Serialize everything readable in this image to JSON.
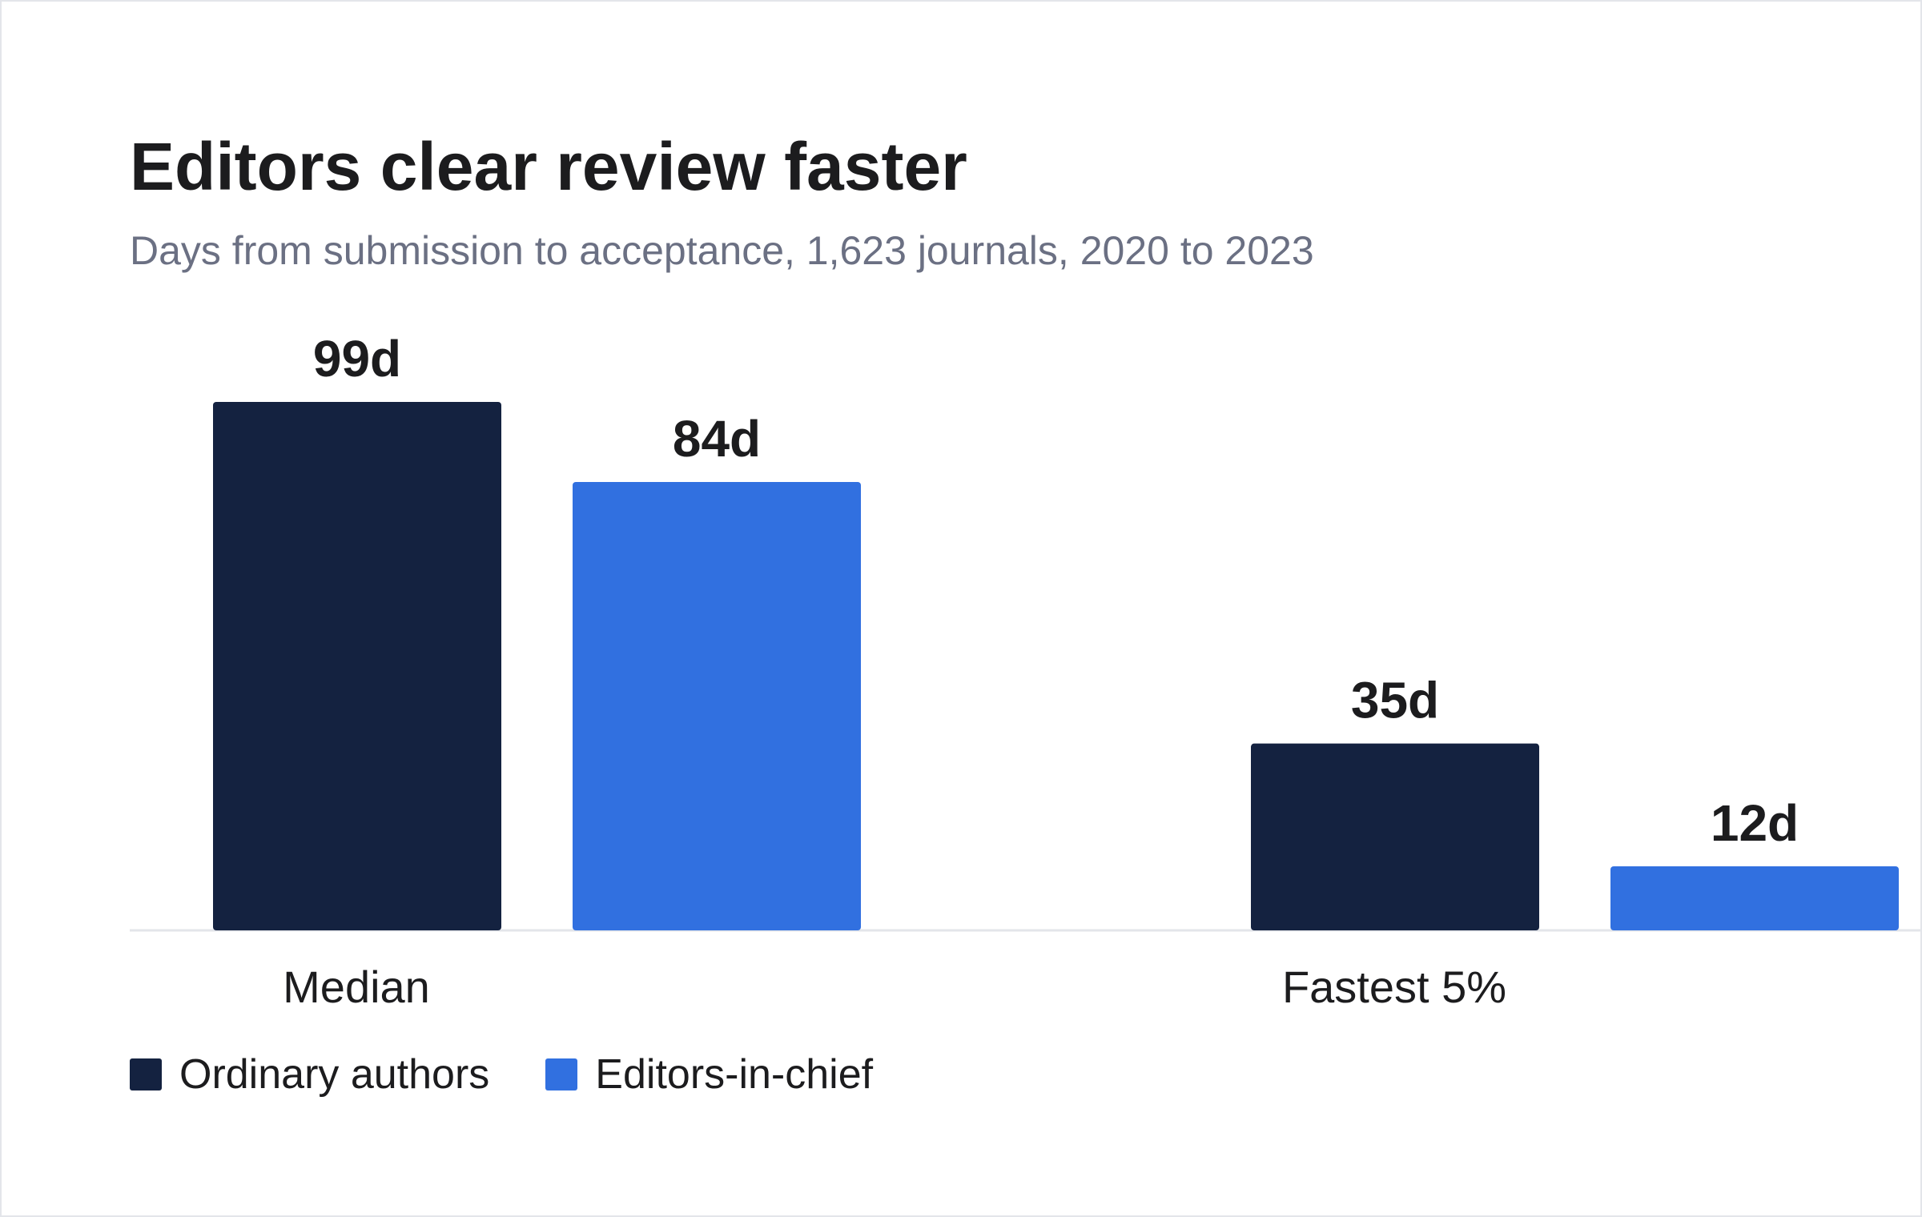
{
  "chart_data": {
    "type": "bar",
    "title": "Editors clear review faster",
    "subtitle": "Days from submission to acceptance, 1,623 journals, 2020 to 2023",
    "categories": [
      "Median",
      "Fastest 5%"
    ],
    "series": [
      {
        "name": "Ordinary authors",
        "values": [
          99,
          35
        ],
        "labels": [
          "99d",
          "35d"
        ],
        "color": "#142240"
      },
      {
        "name": "Editors-in-chief",
        "values": [
          84,
          12
        ],
        "labels": [
          "84d",
          "12d"
        ],
        "color": "#3170e0"
      }
    ],
    "xlabel": "",
    "ylabel": "",
    "ylim": [
      0,
      99
    ],
    "grid": false,
    "legend": "bottom-left"
  }
}
